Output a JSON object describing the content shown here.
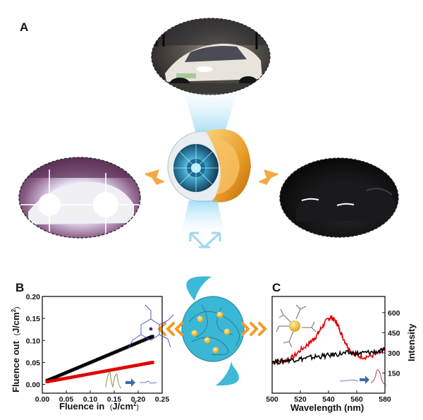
{
  "figure": {
    "panel_a_label": "A",
    "panel_b_label": "B",
    "panel_c_label": "C",
    "photos": [
      {
        "name": "car-normal-lighting-photo",
        "description_hidden": false
      },
      {
        "name": "car-glare-photo",
        "description_hidden": false
      },
      {
        "name": "car-dark-photo",
        "description_hidden": false
      }
    ]
  },
  "colors": {
    "black_series": "#000000",
    "red_series": "#e00000",
    "accent_orange": "#f39a2b",
    "lens_cyan": "#3bb7d6",
    "arrow_blue": "#9fd8ee"
  },
  "chart_data": [
    {
      "panel": "B",
      "type": "scatter",
      "xlabel_main": "Fluence in",
      "xlabel_unit": "J/cm",
      "xlabel_sup": "2",
      "ylabel_main": "Fluence out",
      "ylabel_unit": "J/cm",
      "ylabel_sup": "2",
      "xlim": [
        0.0,
        0.25
      ],
      "ylim": [
        -0.02,
        0.2
      ],
      "xticks": [
        "0.00",
        "0.05",
        "0.10",
        "0.15",
        "0.20",
        "0.25"
      ],
      "xtick_values": [
        0.0,
        0.05,
        0.1,
        0.15,
        0.2,
        0.25
      ],
      "yticks": [
        "0.00",
        "0.05",
        "0.10",
        "0.15",
        "0.20"
      ],
      "ytick_values": [
        0.0,
        0.05,
        0.1,
        0.15,
        0.2
      ],
      "series": [
        {
          "color": "#000000",
          "x": [
            0.01,
            0.0275,
            0.045,
            0.0625,
            0.08,
            0.0975,
            0.115,
            0.1325,
            0.15,
            0.1675,
            0.185,
            0.2025,
            0.22,
            0.23
          ],
          "y": [
            0.009,
            0.0165,
            0.0245,
            0.0325,
            0.0405,
            0.0485,
            0.0565,
            0.0645,
            0.0725,
            0.0805,
            0.0885,
            0.0965,
            0.1045,
            0.109
          ]
        },
        {
          "color": "#e00000",
          "x": [
            0.01,
            0.0275,
            0.045,
            0.0625,
            0.08,
            0.0975,
            0.115,
            0.1325,
            0.15,
            0.1675,
            0.185,
            0.2025,
            0.22,
            0.23
          ],
          "y": [
            0.006,
            0.0095,
            0.013,
            0.0165,
            0.02,
            0.0235,
            0.027,
            0.0305,
            0.034,
            0.0375,
            0.041,
            0.0445,
            0.048,
            0.05
          ]
        }
      ]
    },
    {
      "panel": "C",
      "type": "line",
      "xlabel": "Wavelength (nm)",
      "ylabel": "Intensity",
      "xlim": [
        500,
        580
      ],
      "ylim": [
        0,
        720
      ],
      "xticks": [
        "500",
        "520",
        "540",
        "560",
        "580"
      ],
      "xtick_values": [
        500,
        520,
        540,
        560,
        580
      ],
      "yticks": [
        "150",
        "300",
        "450",
        "600"
      ],
      "ytick_values": [
        150,
        300,
        450,
        600
      ],
      "y_axis_side": "right",
      "series": [
        {
          "color": "#e00000",
          "x": [
            500,
            505,
            510,
            515,
            520,
            525,
            528,
            531,
            534,
            537,
            540,
            542,
            544,
            546,
            548,
            550,
            553,
            556,
            560,
            565,
            570,
            575,
            580
          ],
          "y": [
            230,
            235,
            245,
            270,
            320,
            360,
            390,
            420,
            470,
            520,
            555,
            565,
            545,
            520,
            470,
            420,
            360,
            310,
            280,
            270,
            275,
            300,
            310
          ]
        },
        {
          "color": "#000000",
          "x": [
            500,
            505,
            510,
            515,
            520,
            525,
            530,
            535,
            540,
            545,
            550,
            555,
            560,
            565,
            570,
            575,
            580
          ],
          "y": [
            240,
            235,
            245,
            250,
            255,
            262,
            270,
            275,
            280,
            290,
            295,
            300,
            295,
            300,
            305,
            310,
            320
          ]
        }
      ]
    }
  ]
}
